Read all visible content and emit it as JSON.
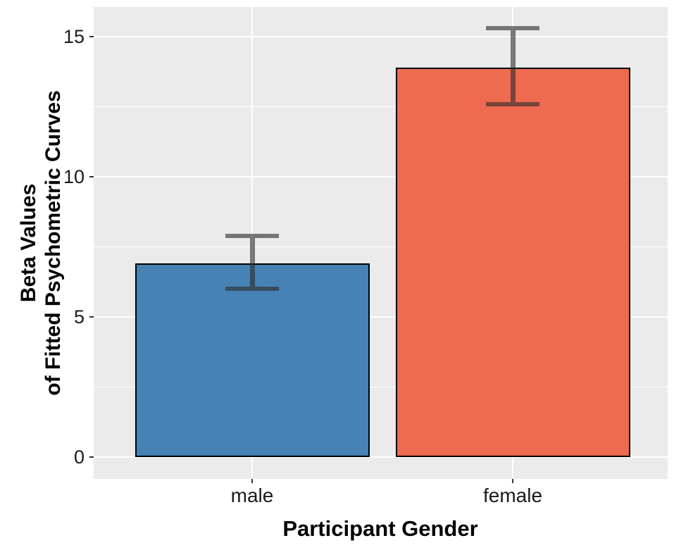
{
  "chart_data": {
    "type": "bar",
    "title": "",
    "categories": [
      "male",
      "female"
    ],
    "values": [
      6.9,
      13.9
    ],
    "errors": {
      "low": [
        6.0,
        12.6
      ],
      "high": [
        7.9,
        15.3
      ]
    },
    "bar_colors": [
      "#4682B4",
      "#EE6A50"
    ],
    "bar_edge_color": "#000000",
    "errorbar_color": "#2E2E2E",
    "errorbar_opacity": 0.62,
    "xlabel": "Participant Gender",
    "ylabel_lines": [
      "Beta Values",
      "of Fitted Psychometric Curves"
    ],
    "yticks": [
      0,
      5,
      10,
      15
    ],
    "ylim": [
      0,
      16
    ],
    "legend": "none",
    "grid": {
      "panel_bg": "#EBEBEB",
      "major_color": "#FFFFFF",
      "minor_color": "#FFFFFF",
      "minor_between_majors": true
    }
  }
}
